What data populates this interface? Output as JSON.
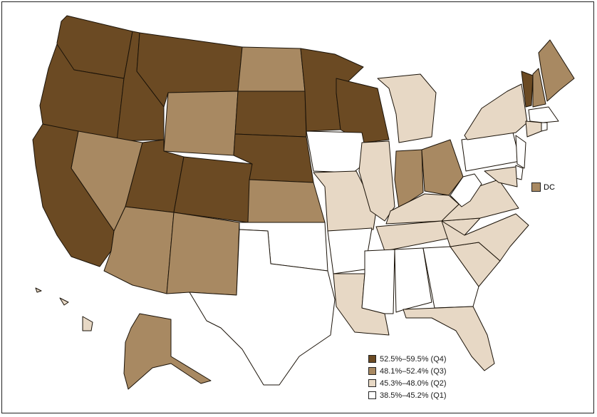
{
  "colors": {
    "q4": "#6b4a23",
    "q3": "#a88962",
    "q2": "#e7d8c5",
    "q1": "#ffffff"
  },
  "legend": [
    {
      "label": "52.5%–59.5% (Q4)",
      "quartile": "q4"
    },
    {
      "label": "48.1%–52.4% (Q3)",
      "quartile": "q3"
    },
    {
      "label": "45.3%–48.0% (Q2)",
      "quartile": "q2"
    },
    {
      "label": "38.5%–45.2% (Q1)",
      "quartile": "q1"
    }
  ],
  "dc": {
    "label": "DC",
    "quartile": "q3"
  },
  "states": {
    "WA": "q4",
    "OR": "q4",
    "CA": "q4",
    "ID": "q4",
    "MT": "q4",
    "UT": "q4",
    "CO": "q4",
    "NE": "q4",
    "SD": "q4",
    "MN": "q4",
    "WI": "q4",
    "VT": "q4",
    "NV": "q3",
    "AZ": "q3",
    "NM": "q3",
    "WY": "q3",
    "ND": "q3",
    "KS": "q3",
    "IN": "q3",
    "OH": "q3",
    "NH": "q3",
    "ME": "q3",
    "AK": "q3",
    "MI": "q2",
    "IL": "q2",
    "MO": "q2",
    "KY": "q2",
    "TN": "q2",
    "VA": "q2",
    "NC": "q2",
    "SC": "q2",
    "FL": "q2",
    "LA": "q2",
    "MD": "q2",
    "NY": "q2",
    "CT": "q2",
    "HI": "q2",
    "TX": "q1",
    "OK": "q1",
    "AR": "q1",
    "MS": "q1",
    "AL": "q1",
    "GA": "q1",
    "IA": "q1",
    "PA": "q1",
    "NJ": "q1",
    "DE": "q1",
    "WV": "q1",
    "MA": "q1",
    "RI": "q1"
  }
}
